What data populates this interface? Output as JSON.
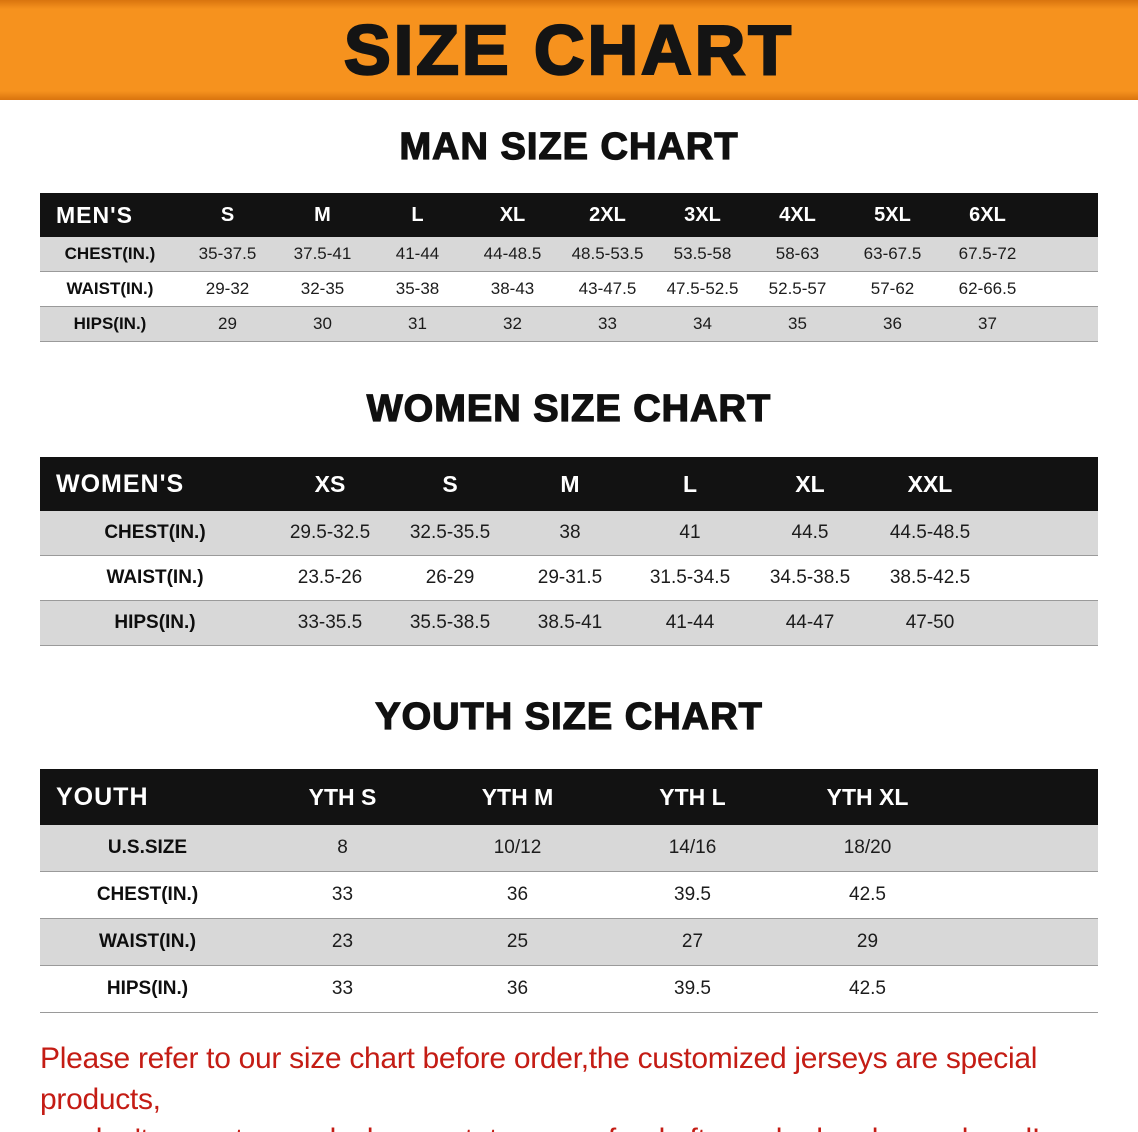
{
  "banner": {
    "title": "SIZE CHART"
  },
  "sections": [
    {
      "heading": "MAN SIZE CHART",
      "table": {
        "header": [
          "MEN'S",
          "S",
          "M",
          "L",
          "XL",
          "2XL",
          "3XL",
          "4XL",
          "5XL",
          "6XL"
        ],
        "rows": [
          [
            "CHEST(IN.)",
            "35-37.5",
            "37.5-41",
            "41-44",
            "44-48.5",
            "48.5-53.5",
            "53.5-58",
            "58-63",
            "63-67.5",
            "67.5-72"
          ],
          [
            "WAIST(IN.)",
            "29-32",
            "32-35",
            "35-38",
            "38-43",
            "43-47.5",
            "47.5-52.5",
            "52.5-57",
            "57-62",
            "62-66.5"
          ],
          [
            "HIPS(IN.)",
            "29",
            "30",
            "31",
            "32",
            "33",
            "34",
            "35",
            "36",
            "37"
          ]
        ]
      }
    },
    {
      "heading": "WOMEN SIZE CHART",
      "table": {
        "header": [
          "WOMEN'S",
          "XS",
          "S",
          "M",
          "L",
          "XL",
          "XXL"
        ],
        "rows": [
          [
            "CHEST(IN.)",
            "29.5-32.5",
            "32.5-35.5",
            "38",
            "41",
            "44.5",
            "44.5-48.5"
          ],
          [
            "WAIST(IN.)",
            "23.5-26",
            "26-29",
            "29-31.5",
            "31.5-34.5",
            "34.5-38.5",
            "38.5-42.5"
          ],
          [
            "HIPS(IN.)",
            "33-35.5",
            "35.5-38.5",
            "38.5-41",
            "41-44",
            "44-47",
            "47-50"
          ]
        ]
      }
    },
    {
      "heading": "YOUTH SIZE CHART",
      "table": {
        "header": [
          "YOUTH",
          "YTH S",
          "YTH M",
          "YTH L",
          "YTH XL"
        ],
        "rows": [
          [
            "U.S.SIZE",
            "8",
            "10/12",
            "14/16",
            "18/20"
          ],
          [
            "CHEST(IN.)",
            "33",
            "36",
            "39.5",
            "42.5"
          ],
          [
            "WAIST(IN.)",
            "23",
            "25",
            "27",
            "29"
          ],
          [
            "HIPS(IN.)",
            "33",
            "36",
            "39.5",
            "42.5"
          ]
        ]
      }
    }
  ],
  "disclaimer": {
    "line1": "Please refer to our size chart before order,the customized jerseys are special products,",
    "line2": "we don't accept cancel, change, teturn or refund after order has been placed!"
  },
  "colors": {
    "banner_orange": "#f6921e",
    "header_black": "#121212",
    "row_gray": "#d8d8d8",
    "disclaimer_red": "#c41c14"
  }
}
